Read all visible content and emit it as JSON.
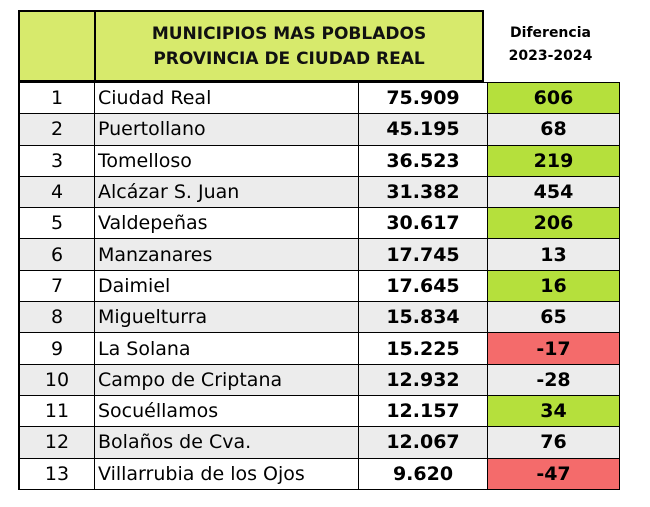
{
  "header": {
    "title_line1": "MUNICIPIOS MAS POBLADOS",
    "title_line2": "PROVINCIA DE CIUDAD REAL",
    "diff_line1": "Diferencia",
    "diff_line2": "2023-2024"
  },
  "colors": {
    "header": "#d7ea6c",
    "positive": "#b5e03c",
    "negative": "#f46b6b"
  },
  "rows": [
    {
      "rank": "1",
      "name": "Ciudad Real",
      "population": "75.909",
      "diff": "606"
    },
    {
      "rank": "2",
      "name": "Puertollano",
      "population": "45.195",
      "diff": "68"
    },
    {
      "rank": "3",
      "name": "Tomelloso",
      "population": "36.523",
      "diff": "219"
    },
    {
      "rank": "4",
      "name": "Alcázar S. Juan",
      "population": "31.382",
      "diff": "454"
    },
    {
      "rank": "5",
      "name": "Valdepeñas",
      "population": "30.617",
      "diff": "206"
    },
    {
      "rank": "6",
      "name": "Manzanares",
      "population": "17.745",
      "diff": "13"
    },
    {
      "rank": "7",
      "name": "Daimiel",
      "population": "17.645",
      "diff": "16"
    },
    {
      "rank": "8",
      "name": "Miguelturra",
      "population": "15.834",
      "diff": "65"
    },
    {
      "rank": "9",
      "name": "La Solana",
      "population": "15.225",
      "diff": "-17"
    },
    {
      "rank": "10",
      "name": "Campo de Criptana",
      "population": "12.932",
      "diff": "-28"
    },
    {
      "rank": "11",
      "name": "Socuéllamos",
      "population": "12.157",
      "diff": "34"
    },
    {
      "rank": "12",
      "name": "Bolaños de Cva.",
      "population": "12.067",
      "diff": "76"
    },
    {
      "rank": "13",
      "name": "Villarrubia de los Ojos",
      "population": "9.620",
      "diff": "-47"
    }
  ]
}
